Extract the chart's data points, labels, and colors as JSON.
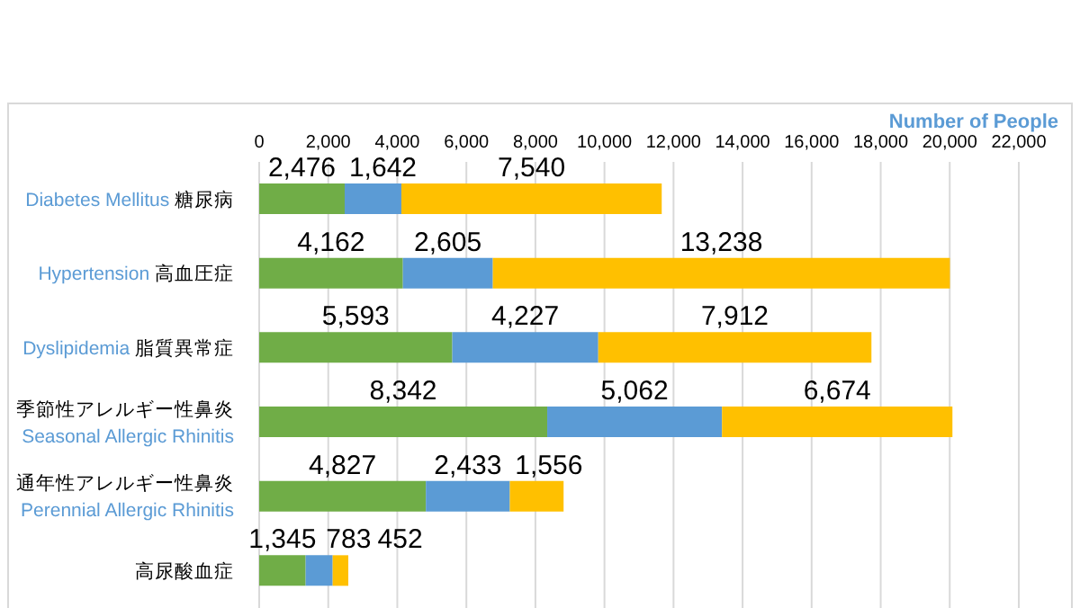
{
  "chart_data": {
    "type": "bar",
    "orientation": "horizontal",
    "stacked": true,
    "xlabel": "Number of People",
    "categories": [
      "Diabetes Mellitus 糖尿病",
      "Hypertension 高血圧症",
      "Dyslipidemia 脂質異常症",
      "季節性アレルギー性鼻炎\nSeasonal Allergic Rhinitis",
      "通年性アレルギー性鼻炎\nPerennial Allergic Rhinitis",
      "高尿酸血症"
    ],
    "series": [
      {
        "color": "#70ad47",
        "values": [
          2476,
          4162,
          5593,
          8342,
          4827,
          1345
        ],
        "value_labels": [
          "2,476",
          "4,162",
          "5,593",
          "8,342",
          "4,827",
          "1,345"
        ]
      },
      {
        "color": "#5b9bd5",
        "values": [
          1642,
          2605,
          4227,
          5062,
          2433,
          783
        ],
        "value_labels": [
          "1,642",
          "2,605",
          "4,227",
          "5,062",
          "2,433",
          "783"
        ]
      },
      {
        "color": "#ffc000",
        "values": [
          7540,
          13238,
          7912,
          6674,
          1556,
          452
        ],
        "value_labels": [
          "7,540",
          "13,238",
          "7,912",
          "6,674",
          "1,556",
          "452"
        ]
      }
    ],
    "xlim": [
      0,
      22000
    ],
    "xticks": [
      {
        "value": 0,
        "label": "0"
      },
      {
        "value": 2000,
        "label": "2,000"
      },
      {
        "value": 4000,
        "label": "4,000"
      },
      {
        "value": 6000,
        "label": "6,000"
      },
      {
        "value": 8000,
        "label": "8,000"
      },
      {
        "value": 10000,
        "label": "10,000"
      },
      {
        "value": 12000,
        "label": "12,000"
      },
      {
        "value": 14000,
        "label": "14,000"
      },
      {
        "value": 16000,
        "label": "16,000"
      },
      {
        "value": 18000,
        "label": "18,000"
      },
      {
        "value": 20000,
        "label": "20,000"
      },
      {
        "value": 22000,
        "label": "22,000"
      }
    ],
    "grid": "x",
    "legend": false
  }
}
